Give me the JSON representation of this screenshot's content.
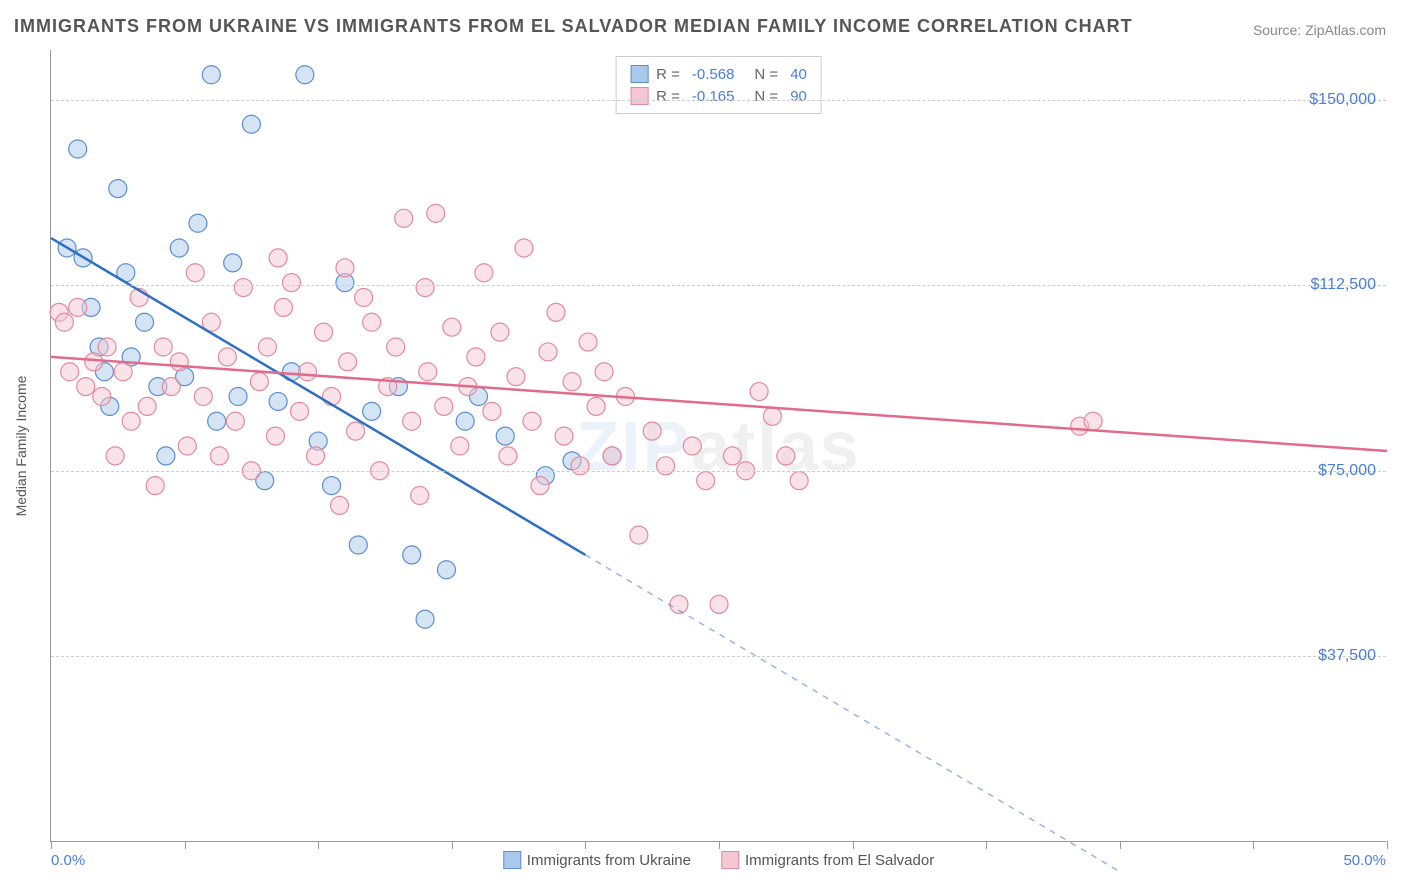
{
  "title": "IMMIGRANTS FROM UKRAINE VS IMMIGRANTS FROM EL SALVADOR MEDIAN FAMILY INCOME CORRELATION CHART",
  "source_label": "Source: ZipAtlas.com",
  "watermark_z": "ZIP",
  "watermark_a": "atlas",
  "chart": {
    "type": "scatter",
    "y_axis_label": "Median Family Income",
    "xlim": [
      0,
      50
    ],
    "ylim": [
      0,
      160000
    ],
    "x_min_label": "0.0%",
    "x_max_label": "50.0%",
    "y_ticks": [
      37500,
      75000,
      112500,
      150000
    ],
    "y_tick_labels": [
      "$37,500",
      "$75,000",
      "$112,500",
      "$150,000"
    ],
    "x_ticks": [
      0,
      5,
      10,
      15,
      20,
      25,
      30,
      35,
      40,
      45,
      50
    ],
    "grid_color": "#cccccc",
    "background_color": "#ffffff",
    "series": [
      {
        "name": "Immigrants from Ukraine",
        "fill_color": "#a9c9ec",
        "stroke_color": "#5b8fd0",
        "line_color": "#2f6fc4",
        "marker_radius": 9,
        "fill_opacity": 0.5,
        "R": "-0.568",
        "N": "40",
        "trend": {
          "x1": 0,
          "y1": 122000,
          "x2": 20,
          "y2": 58000,
          "dash_x2": 40,
          "dash_y2": -6000
        },
        "points": [
          [
            0.6,
            120000
          ],
          [
            1.0,
            140000
          ],
          [
            1.2,
            118000
          ],
          [
            1.5,
            108000
          ],
          [
            1.8,
            100000
          ],
          [
            2.0,
            95000
          ],
          [
            2.2,
            88000
          ],
          [
            2.5,
            132000
          ],
          [
            2.8,
            115000
          ],
          [
            3.0,
            98000
          ],
          [
            3.5,
            105000
          ],
          [
            4.0,
            92000
          ],
          [
            4.3,
            78000
          ],
          [
            4.8,
            120000
          ],
          [
            5.0,
            94000
          ],
          [
            5.5,
            125000
          ],
          [
            6.0,
            155000
          ],
          [
            6.2,
            85000
          ],
          [
            6.8,
            117000
          ],
          [
            7.0,
            90000
          ],
          [
            7.5,
            145000
          ],
          [
            8.0,
            73000
          ],
          [
            8.5,
            89000
          ],
          [
            9.0,
            95000
          ],
          [
            9.5,
            155000
          ],
          [
            10.0,
            81000
          ],
          [
            10.5,
            72000
          ],
          [
            11.0,
            113000
          ],
          [
            11.5,
            60000
          ],
          [
            12.0,
            87000
          ],
          [
            13.0,
            92000
          ],
          [
            13.5,
            58000
          ],
          [
            14.0,
            45000
          ],
          [
            14.8,
            55000
          ],
          [
            15.5,
            85000
          ],
          [
            16.0,
            90000
          ],
          [
            17.0,
            82000
          ],
          [
            18.5,
            74000
          ],
          [
            19.5,
            77000
          ],
          [
            21.0,
            78000
          ]
        ]
      },
      {
        "name": "Immigrants from El Salvador",
        "fill_color": "#f5c7d2",
        "stroke_color": "#e28aa0",
        "line_color": "#e06b8c",
        "marker_radius": 9,
        "fill_opacity": 0.5,
        "R": "-0.165",
        "N": "90",
        "trend": {
          "x1": 0,
          "y1": 98000,
          "x2": 50,
          "y2": 79000
        },
        "points": [
          [
            0.3,
            107000
          ],
          [
            0.5,
            105000
          ],
          [
            0.7,
            95000
          ],
          [
            1.0,
            108000
          ],
          [
            1.3,
            92000
          ],
          [
            1.6,
            97000
          ],
          [
            1.9,
            90000
          ],
          [
            2.1,
            100000
          ],
          [
            2.4,
            78000
          ],
          [
            2.7,
            95000
          ],
          [
            3.0,
            85000
          ],
          [
            3.3,
            110000
          ],
          [
            3.6,
            88000
          ],
          [
            3.9,
            72000
          ],
          [
            4.2,
            100000
          ],
          [
            4.5,
            92000
          ],
          [
            4.8,
            97000
          ],
          [
            5.1,
            80000
          ],
          [
            5.4,
            115000
          ],
          [
            5.7,
            90000
          ],
          [
            6.0,
            105000
          ],
          [
            6.3,
            78000
          ],
          [
            6.6,
            98000
          ],
          [
            6.9,
            85000
          ],
          [
            7.2,
            112000
          ],
          [
            7.5,
            75000
          ],
          [
            7.8,
            93000
          ],
          [
            8.1,
            100000
          ],
          [
            8.4,
            82000
          ],
          [
            8.7,
            108000
          ],
          [
            9.0,
            113000
          ],
          [
            9.3,
            87000
          ],
          [
            9.6,
            95000
          ],
          [
            9.9,
            78000
          ],
          [
            10.2,
            103000
          ],
          [
            10.5,
            90000
          ],
          [
            10.8,
            68000
          ],
          [
            11.1,
            97000
          ],
          [
            11.4,
            83000
          ],
          [
            11.7,
            110000
          ],
          [
            12.0,
            105000
          ],
          [
            12.3,
            75000
          ],
          [
            12.6,
            92000
          ],
          [
            12.9,
            100000
          ],
          [
            13.2,
            126000
          ],
          [
            13.5,
            85000
          ],
          [
            13.8,
            70000
          ],
          [
            14.1,
            95000
          ],
          [
            14.4,
            127000
          ],
          [
            14.7,
            88000
          ],
          [
            15.0,
            104000
          ],
          [
            15.3,
            80000
          ],
          [
            15.6,
            92000
          ],
          [
            15.9,
            98000
          ],
          [
            16.2,
            115000
          ],
          [
            16.5,
            87000
          ],
          [
            16.8,
            103000
          ],
          [
            17.1,
            78000
          ],
          [
            17.4,
            94000
          ],
          [
            17.7,
            120000
          ],
          [
            18.0,
            85000
          ],
          [
            18.3,
            72000
          ],
          [
            18.6,
            99000
          ],
          [
            18.9,
            107000
          ],
          [
            19.2,
            82000
          ],
          [
            19.5,
            93000
          ],
          [
            19.8,
            76000
          ],
          [
            20.1,
            101000
          ],
          [
            20.4,
            88000
          ],
          [
            20.7,
            95000
          ],
          [
            21.0,
            78000
          ],
          [
            21.5,
            90000
          ],
          [
            22.0,
            62000
          ],
          [
            22.5,
            83000
          ],
          [
            23.0,
            76000
          ],
          [
            23.5,
            48000
          ],
          [
            24.0,
            80000
          ],
          [
            24.5,
            73000
          ],
          [
            25.0,
            48000
          ],
          [
            25.5,
            78000
          ],
          [
            26.0,
            75000
          ],
          [
            26.5,
            91000
          ],
          [
            27.0,
            86000
          ],
          [
            27.5,
            78000
          ],
          [
            28.0,
            73000
          ],
          [
            38.5,
            84000
          ],
          [
            39.0,
            85000
          ],
          [
            14.0,
            112000
          ],
          [
            11.0,
            116000
          ],
          [
            8.5,
            118000
          ]
        ]
      }
    ]
  },
  "legend_bottom": [
    "Immigrants from Ukraine",
    "Immigrants from El Salvador"
  ]
}
